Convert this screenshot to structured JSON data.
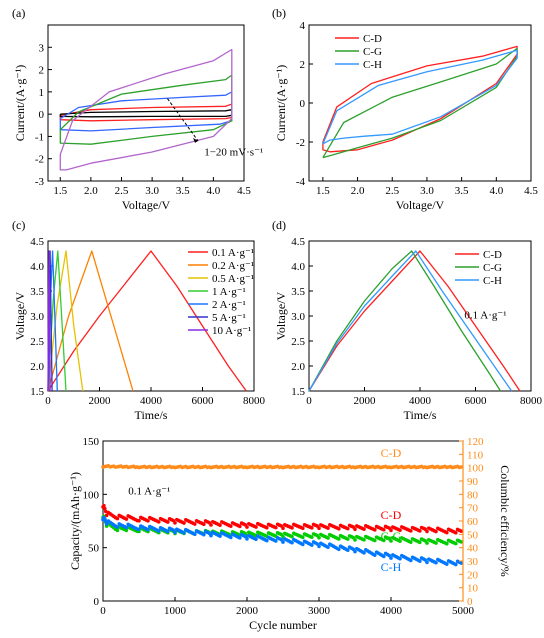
{
  "chart_data": [
    {
      "panel": "(a)",
      "type": "line",
      "xlabel": "Voltage/V",
      "ylabel": "Current/(A·g⁻¹)",
      "xlim": [
        1.3,
        4.5
      ],
      "ylim": [
        -3,
        4
      ],
      "xticks": [
        1.5,
        2.0,
        2.5,
        3.0,
        3.5,
        4.0,
        4.5
      ],
      "yticks": [
        -3,
        -2,
        -1,
        0,
        1,
        2,
        3
      ],
      "annotation": "1−20 mV·s⁻¹",
      "legend": null,
      "series": [
        {
          "color": "#ff2020",
          "x": [
            1.5,
            2.0,
            3.0,
            4.2,
            4.3,
            4.3,
            4.2,
            3.0,
            2.0,
            1.5,
            1.5
          ],
          "y": [
            -0.05,
            0.2,
            0.3,
            0.35,
            0.45,
            -0.15,
            -0.2,
            -0.25,
            -0.3,
            -0.25,
            -0.05
          ]
        },
        {
          "color": "#000000",
          "x": [
            1.5,
            2.0,
            3.0,
            4.2,
            4.3,
            4.3,
            4.2,
            3.0,
            2.0,
            1.5,
            1.5
          ],
          "y": [
            0.0,
            0.08,
            0.12,
            0.15,
            0.2,
            -0.05,
            -0.1,
            -0.1,
            -0.12,
            -0.1,
            0.0
          ]
        },
        {
          "color": "#3366ff",
          "x": [
            1.5,
            1.8,
            2.5,
            3.5,
            4.2,
            4.3,
            4.3,
            4.1,
            3.0,
            2.0,
            1.5,
            1.5
          ],
          "y": [
            -0.2,
            0.3,
            0.6,
            0.75,
            0.85,
            1.0,
            -0.3,
            -0.45,
            -0.6,
            -0.75,
            -0.7,
            -0.2
          ]
        },
        {
          "color": "#2ca02c",
          "x": [
            1.5,
            1.8,
            2.5,
            3.5,
            4.2,
            4.3,
            4.3,
            4.0,
            3.0,
            2.0,
            1.5,
            1.5
          ],
          "y": [
            -0.7,
            0.1,
            0.9,
            1.3,
            1.55,
            1.75,
            -0.3,
            -0.7,
            -1.0,
            -1.35,
            -1.3,
            -0.7
          ]
        },
        {
          "color": "#b266cc",
          "x": [
            1.5,
            1.7,
            2.3,
            3.2,
            4.0,
            4.3,
            4.3,
            4.0,
            3.0,
            2.0,
            1.6,
            1.5,
            1.5
          ],
          "y": [
            -1.8,
            -0.3,
            1.0,
            1.8,
            2.4,
            2.9,
            -0.2,
            -1.0,
            -1.7,
            -2.2,
            -2.5,
            -2.5,
            -1.8
          ]
        }
      ]
    },
    {
      "panel": "(b)",
      "type": "line",
      "xlabel": "Voltage/V",
      "ylabel": "Current/(A·g⁻¹)",
      "xlim": [
        1.3,
        4.5
      ],
      "ylim": [
        -4,
        4
      ],
      "xticks": [
        1.5,
        2.0,
        2.5,
        3.0,
        3.5,
        4.0,
        4.5
      ],
      "yticks": [
        -4,
        -2,
        0,
        2,
        4
      ],
      "legend": "top-left",
      "series": [
        {
          "name": "C-D",
          "color": "#ff2020",
          "x": [
            1.5,
            1.7,
            2.2,
            3.0,
            3.8,
            4.3,
            4.3,
            4.0,
            3.2,
            2.5,
            2.0,
            1.6,
            1.5,
            1.5
          ],
          "y": [
            -2.0,
            -0.2,
            1.0,
            1.9,
            2.4,
            2.9,
            2.5,
            1.0,
            -0.8,
            -1.9,
            -2.4,
            -2.5,
            -2.4,
            -2.0
          ]
        },
        {
          "name": "C-G",
          "color": "#2ca02c",
          "x": [
            1.5,
            1.8,
            2.5,
            3.3,
            4.0,
            4.3,
            4.3,
            4.0,
            3.2,
            2.5,
            2.0,
            1.6,
            1.5
          ],
          "y": [
            -2.8,
            -1.0,
            0.3,
            1.2,
            2.0,
            2.8,
            2.4,
            0.8,
            -0.9,
            -1.8,
            -2.3,
            -2.7,
            -2.8
          ]
        },
        {
          "name": "C-H",
          "color": "#3399ff",
          "x": [
            1.5,
            1.7,
            2.3,
            3.0,
            3.8,
            4.3,
            4.3,
            4.0,
            3.2,
            2.5,
            2.1,
            1.8,
            1.6,
            1.5
          ],
          "y": [
            -2.1,
            -0.4,
            0.9,
            1.6,
            2.2,
            2.7,
            2.3,
            0.9,
            -0.7,
            -1.6,
            -1.7,
            -1.8,
            -1.9,
            -2.1
          ]
        }
      ]
    },
    {
      "panel": "(c)",
      "type": "line",
      "xlabel": "Time/s",
      "ylabel": "Voltage/V",
      "xlim": [
        0,
        8000
      ],
      "ylim": [
        1.5,
        4.5
      ],
      "xticks": [
        0,
        2000,
        4000,
        6000,
        8000
      ],
      "yticks": [
        1.5,
        2.0,
        2.5,
        3.0,
        3.5,
        4.0,
        4.5
      ],
      "legend": "top-right",
      "series": [
        {
          "name": "0.1 A·g⁻¹",
          "color": "#ff2020",
          "x": [
            0,
            1000,
            2000,
            3000,
            4000,
            5000,
            6000,
            7000,
            7700
          ],
          "y": [
            1.5,
            2.3,
            3.0,
            3.65,
            4.3,
            3.6,
            2.8,
            2.0,
            1.5
          ]
        },
        {
          "name": "0.2 A·g⁻¹",
          "color": "#ff8000",
          "x": [
            0,
            800,
            1700,
            2500,
            3300
          ],
          "y": [
            1.5,
            3.0,
            4.3,
            2.9,
            1.5
          ]
        },
        {
          "name": "0.5 A·g⁻¹",
          "color": "#e6c200",
          "x": [
            0,
            350,
            700,
            1000,
            1350
          ],
          "y": [
            1.5,
            3.2,
            4.3,
            2.8,
            1.5
          ]
        },
        {
          "name": "1 A·g⁻¹",
          "color": "#33cc33",
          "x": [
            0,
            200,
            380,
            550,
            700
          ],
          "y": [
            1.5,
            3.3,
            4.3,
            2.8,
            1.5
          ]
        },
        {
          "name": "2 A·g⁻¹",
          "color": "#1a75ff",
          "x": [
            0,
            90,
            180,
            270,
            360
          ],
          "y": [
            1.5,
            3.3,
            4.3,
            2.9,
            1.5
          ]
        },
        {
          "name": "5 A·g⁻¹",
          "color": "#3333cc",
          "x": [
            0,
            40,
            80,
            120,
            160
          ],
          "y": [
            1.5,
            3.4,
            4.3,
            2.9,
            1.5
          ]
        },
        {
          "name": "10 A·g⁻¹",
          "color": "#8a2be2",
          "x": [
            0,
            20,
            40,
            60,
            80
          ],
          "y": [
            1.5,
            3.4,
            4.3,
            2.9,
            1.5
          ]
        }
      ]
    },
    {
      "panel": "(d)",
      "type": "line",
      "xlabel": "Time/s",
      "ylabel": "Voltage/V",
      "xlim": [
        0,
        8000
      ],
      "ylim": [
        1.5,
        4.5
      ],
      "xticks": [
        0,
        2000,
        4000,
        6000,
        8000
      ],
      "yticks": [
        1.5,
        2.0,
        2.5,
        3.0,
        3.5,
        4.0,
        4.5
      ],
      "annotation": "0.1 A·g⁻¹",
      "legend": "top-right",
      "series": [
        {
          "name": "C-D",
          "color": "#ff2020",
          "x": [
            0,
            1000,
            2000,
            3000,
            4000,
            5000,
            6000,
            7000,
            7600
          ],
          "y": [
            1.5,
            2.4,
            3.1,
            3.7,
            4.3,
            3.6,
            2.8,
            2.0,
            1.5
          ]
        },
        {
          "name": "C-G",
          "color": "#2ca02c",
          "x": [
            0,
            1000,
            2000,
            3000,
            3700,
            4500,
            5500,
            6500,
            6900
          ],
          "y": [
            1.5,
            2.5,
            3.3,
            3.95,
            4.3,
            3.6,
            2.7,
            1.85,
            1.5
          ]
        },
        {
          "name": "C-H",
          "color": "#3399ff",
          "x": [
            0,
            1000,
            2000,
            3000,
            3850,
            4800,
            5800,
            6800,
            7300
          ],
          "y": [
            1.5,
            2.45,
            3.2,
            3.8,
            4.3,
            3.5,
            2.7,
            1.9,
            1.5
          ]
        }
      ]
    },
    {
      "panel": "(e)",
      "type": "scatter",
      "xlabel": "Cycle number",
      "ylabel": "Capacity/(mAh·g⁻¹)",
      "y2label": "Columbic efficiency/%",
      "xlim": [
        0,
        5000
      ],
      "ylim": [
        0,
        150
      ],
      "y2lim": [
        0,
        120
      ],
      "xticks": [
        0,
        1000,
        2000,
        3000,
        4000,
        5000
      ],
      "yticks": [
        0,
        50,
        100,
        150
      ],
      "y2ticks": [
        0,
        10,
        20,
        30,
        40,
        50,
        60,
        70,
        80,
        90,
        100,
        110,
        120
      ],
      "annotation": "0.1 A·g⁻¹",
      "series": [
        {
          "name": "C-D",
          "label": "C-D",
          "color": "#ff0000",
          "axis": "left",
          "x": [
            0,
            50,
            200,
            500,
            1000,
            1500,
            2000,
            2500,
            3000,
            3500,
            4000,
            4500,
            5000
          ],
          "y": [
            90,
            82,
            79,
            77,
            75,
            73,
            71,
            70,
            70,
            69,
            68,
            67,
            65
          ]
        },
        {
          "name": "C-G",
          "label": "C-G",
          "color": "#00cc00",
          "axis": "left",
          "x": [
            0,
            50,
            200,
            500,
            1000,
            1500,
            2000,
            2500,
            3000,
            3500,
            4000,
            4500,
            5000
          ],
          "y": [
            80,
            72,
            68,
            67,
            65,
            64,
            63,
            62,
            61,
            59,
            58,
            56,
            55
          ]
        },
        {
          "name": "C-H",
          "label": "C-H",
          "color": "#0077ff",
          "axis": "left",
          "x": [
            0,
            50,
            200,
            500,
            1000,
            1500,
            2000,
            2500,
            3000,
            3500,
            4000,
            4500,
            5000
          ],
          "y": [
            78,
            74,
            71,
            69,
            66,
            63,
            60,
            57,
            53,
            48,
            42,
            38,
            35
          ]
        },
        {
          "name": "C-D efficiency",
          "label": "C-D",
          "color": "#ff8c1a",
          "axis": "right",
          "x": [
            0,
            500,
            1000,
            1500,
            2000,
            2500,
            3000,
            3500,
            4000,
            4500,
            5000
          ],
          "y": [
            101,
            100.5,
            100.5,
            100.5,
            100.5,
            100.5,
            100.5,
            100.5,
            100.5,
            100.5,
            100.5
          ]
        }
      ]
    }
  ]
}
